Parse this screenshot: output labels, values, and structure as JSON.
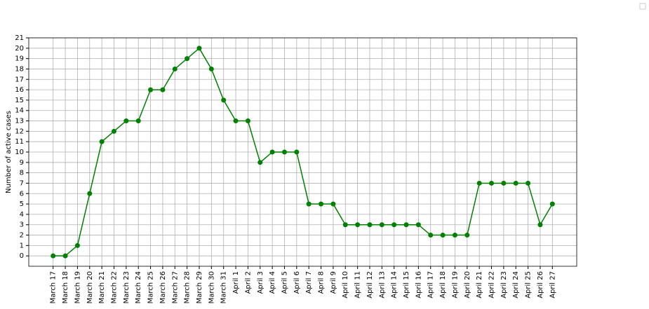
{
  "chart_data": {
    "type": "line",
    "y_label": "Number of active cases",
    "categories": [
      "March 17",
      "March 18",
      "March 19",
      "March 20",
      "March 21",
      "March 22",
      "March 23",
      "March 24",
      "March 25",
      "March 26",
      "March 27",
      "March 28",
      "March 29",
      "March 30",
      "March 31",
      "April 1",
      "April 2",
      "April 3",
      "April 4",
      "April 5",
      "April 6",
      "April 7",
      "April 8",
      "April 9",
      "April 10",
      "April 11",
      "April 12",
      "April 13",
      "April 14",
      "April 15",
      "April 16",
      "April 17",
      "April 18",
      "April 19",
      "April 20",
      "April 21",
      "April 22",
      "April 23",
      "April 24",
      "April 25",
      "April 26",
      "April 27"
    ],
    "values": [
      0,
      0,
      1,
      6,
      11,
      12,
      13,
      13,
      16,
      16,
      18,
      19,
      20,
      18,
      15,
      13,
      13,
      9,
      10,
      10,
      10,
      5,
      5,
      5,
      3,
      3,
      3,
      3,
      3,
      3,
      3,
      2,
      2,
      2,
      2,
      7,
      7,
      7,
      7,
      7,
      3,
      5
    ],
    "color": "#008000",
    "ylim": [
      -1,
      21
    ],
    "yticks": [
      0,
      1,
      2,
      3,
      4,
      5,
      6,
      7,
      8,
      9,
      10,
      11,
      12,
      13,
      14,
      15,
      16,
      17,
      18,
      19,
      20,
      21
    ],
    "grid": true
  }
}
